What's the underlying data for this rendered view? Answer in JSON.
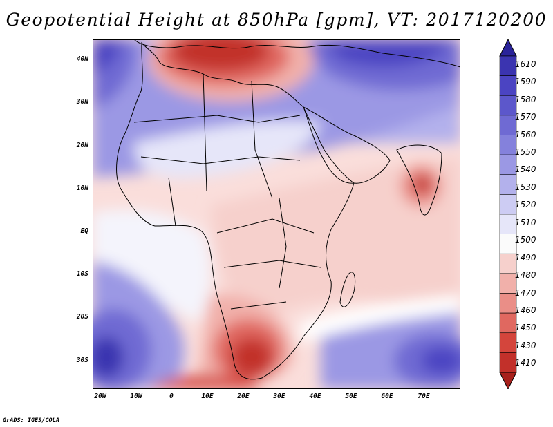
{
  "title": "Geopotential Height at 850hPa [gpm], VT: 2017120200",
  "credit": "GrADS: IGES/COLA",
  "lat_labels": [
    "40N",
    "30N",
    "20N",
    "10N",
    "EQ",
    "10S",
    "20S",
    "30S"
  ],
  "lon_labels": [
    "20W",
    "10W",
    "0",
    "10E",
    "20E",
    "30E",
    "40E",
    "50E",
    "60E",
    "70E"
  ],
  "colorbar": {
    "levels": [
      "1610",
      "1590",
      "1580",
      "1570",
      "1560",
      "1550",
      "1540",
      "1530",
      "1520",
      "1510",
      "1500",
      "1490",
      "1480",
      "1470",
      "1460",
      "1450",
      "1430",
      "1410"
    ],
    "colors": [
      "#2a239a",
      "#3b34b0",
      "#4b44c2",
      "#5c57cb",
      "#6f6ad3",
      "#8481dc",
      "#9b98e4",
      "#b3b1ec",
      "#cdccf3",
      "#e6e6f9",
      "#fbfbfb",
      "#f6d0cc",
      "#f1b0aa",
      "#ea8e87",
      "#e06860",
      "#d4453c",
      "#c2302a",
      "#a8201c"
    ]
  },
  "map": {
    "bounds": {
      "lon_min": -22,
      "lon_max": 80,
      "lat_min": -36,
      "lat_max": 45
    },
    "background": "#fcebea"
  }
}
